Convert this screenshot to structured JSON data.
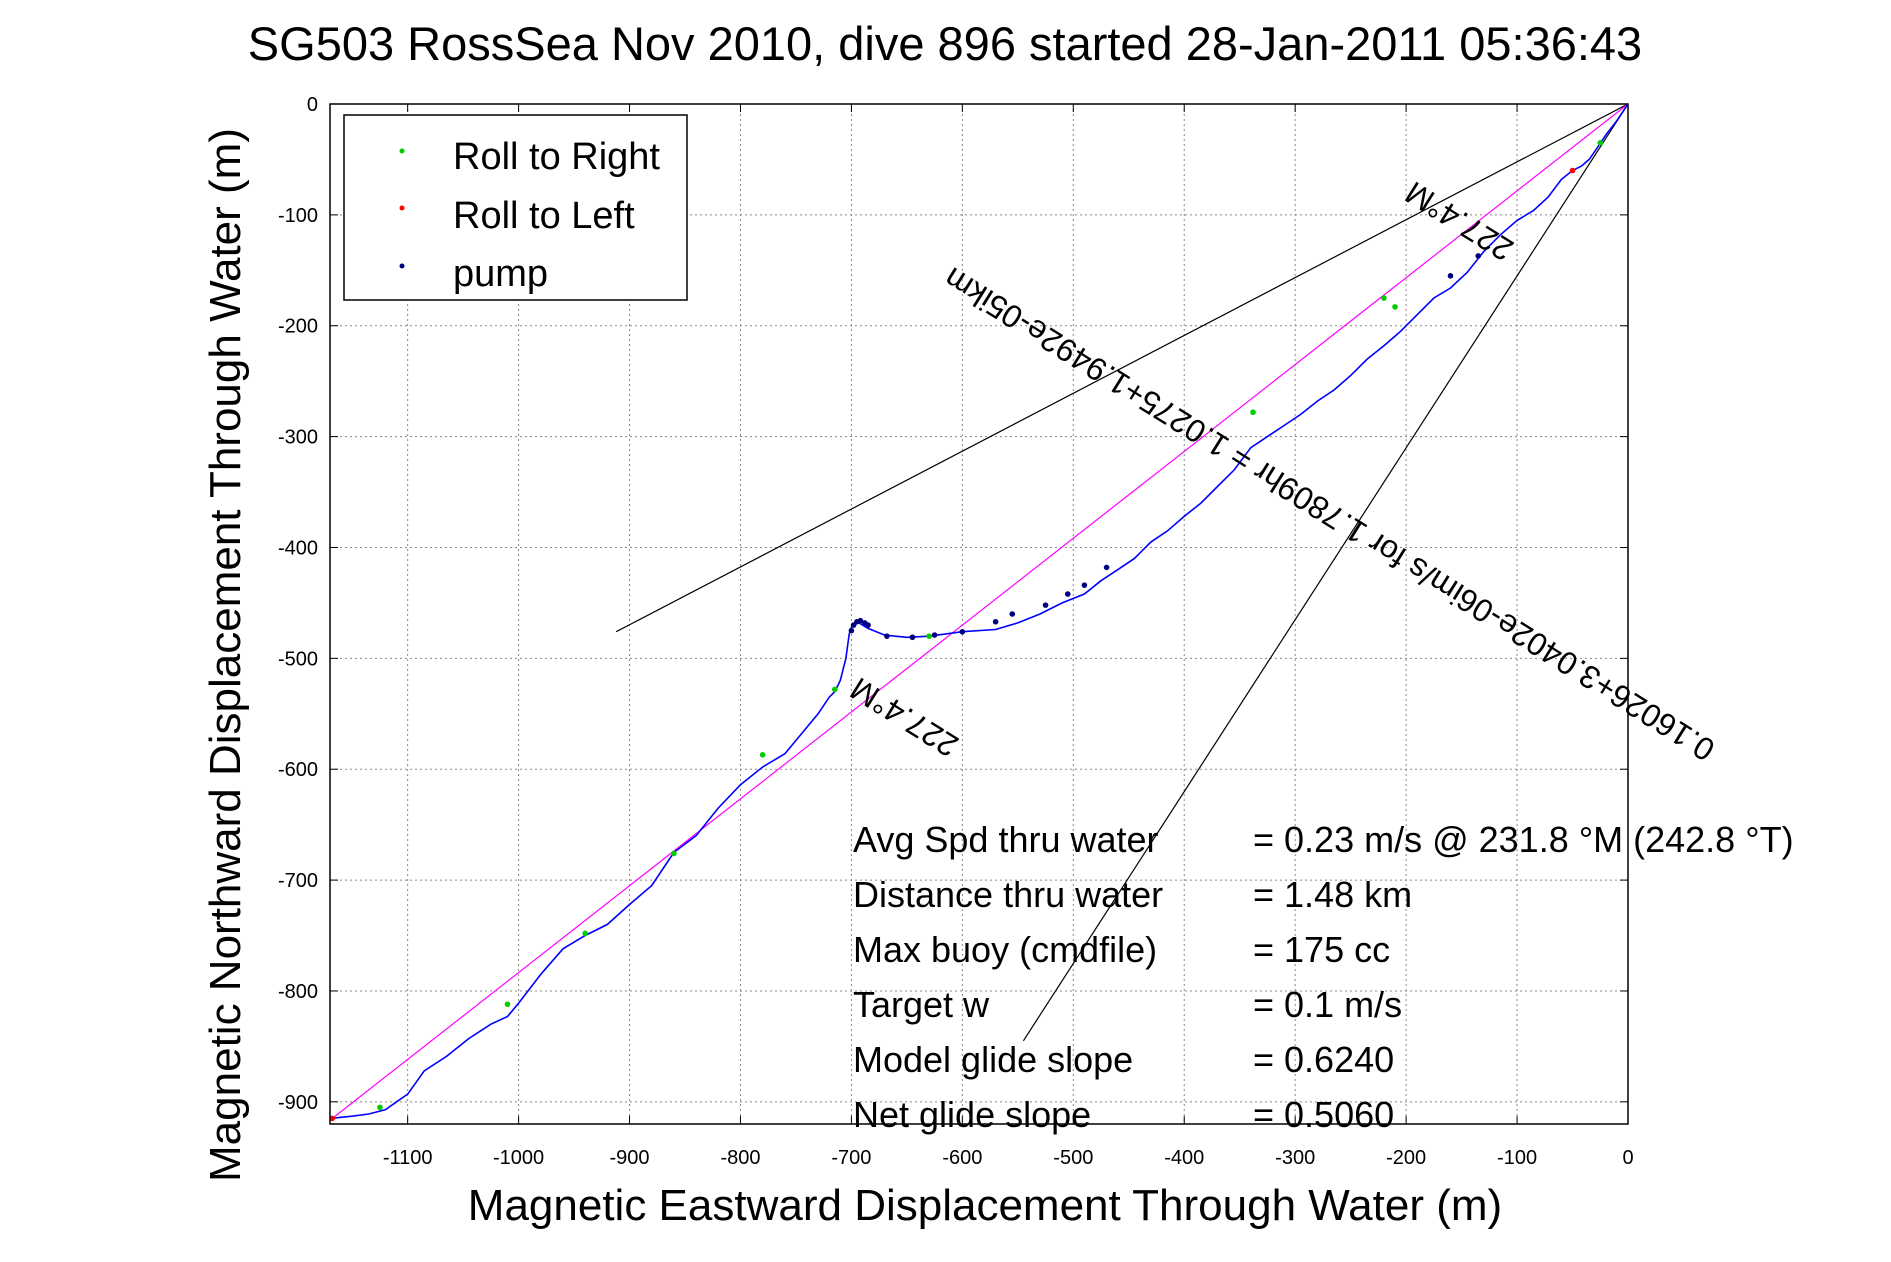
{
  "chart_data": {
    "type": "line",
    "title": "SG503 RossSea Nov 2010, dive 896 started 28-Jan-2011 05:36:43",
    "xlabel": "Magnetic Eastward Displacement Through Water (m)",
    "ylabel": "Magnetic Northward Displacement Through Water (m)",
    "xlim": [
      -1170,
      0
    ],
    "ylim": [
      -920,
      0
    ],
    "xticks": [
      -1100,
      -1000,
      -900,
      -800,
      -700,
      -600,
      -500,
      -400,
      -300,
      -200,
      -100,
      0
    ],
    "yticks": [
      0,
      -100,
      -200,
      -300,
      -400,
      -500,
      -600,
      -700,
      -800,
      -900
    ],
    "grid": true,
    "legend_position": "top-left",
    "colors": {
      "track": "#0000ff",
      "roll_right": "#00cc00",
      "roll_left": "#ff0000",
      "pump": "#000080",
      "reference": "#000000",
      "direct": "#ff00ff"
    },
    "legend": [
      {
        "key": "roll_right",
        "label": "Roll to Right"
      },
      {
        "key": "roll_left",
        "label": "Roll to Left"
      },
      {
        "key": "pump",
        "label": "pump"
      }
    ],
    "series": [
      {
        "name": "track",
        "x": [
          0,
          -10,
          -20,
          -28,
          -35,
          -42,
          -50,
          -60,
          -72,
          -85,
          -100,
          -115,
          -130,
          -145,
          -160,
          -175,
          -190,
          -205,
          -220,
          -235,
          -250,
          -265,
          -280,
          -295,
          -310,
          -325,
          -340,
          -355,
          -370,
          -385,
          -400,
          -415,
          -430,
          -445,
          -460,
          -475,
          -490,
          -510,
          -530,
          -550,
          -570,
          -600,
          -630,
          -650,
          -670,
          -685,
          -690,
          -693,
          -695,
          -697,
          -700,
          -702,
          -705,
          -710,
          -715,
          -720,
          -730,
          -745,
          -760,
          -780,
          -800,
          -820,
          -840,
          -860,
          -870,
          -880,
          -900,
          -920,
          -940,
          -960,
          -980,
          -1000,
          -1010,
          -1025,
          -1045,
          -1065,
          -1085,
          -1100,
          -1110,
          -1120,
          -1135,
          -1150,
          -1160,
          -1170
        ],
        "y": [
          0,
          -15,
          -28,
          -40,
          -50,
          -56,
          -60,
          -68,
          -84,
          -96,
          -105,
          -118,
          -133,
          -152,
          -166,
          -175,
          -190,
          -205,
          -218,
          -230,
          -245,
          -258,
          -268,
          -280,
          -290,
          -300,
          -310,
          -330,
          -345,
          -360,
          -372,
          -385,
          -395,
          -410,
          -420,
          -430,
          -442,
          -450,
          -460,
          -468,
          -474,
          -476,
          -480,
          -481,
          -479,
          -473,
          -470,
          -468,
          -467,
          -468,
          -472,
          -478,
          -500,
          -520,
          -530,
          -535,
          -550,
          -568,
          -586,
          -598,
          -614,
          -635,
          -660,
          -675,
          -690,
          -705,
          -722,
          -740,
          -750,
          -762,
          -785,
          -811,
          -823,
          -830,
          -843,
          -859,
          -872,
          -893,
          -900,
          -907,
          -911,
          -913,
          -914,
          -915
        ]
      },
      {
        "name": "roll_right",
        "x": [
          -25,
          -210,
          -220,
          -338,
          -630,
          -645,
          -715,
          -780,
          -860,
          -940,
          -1010,
          -1125
        ],
        "y": [
          -35,
          -183,
          -175,
          -278,
          -480,
          -481,
          -528,
          -587,
          -676,
          -748,
          -812,
          -905
        ]
      },
      {
        "name": "roll_left",
        "x": [
          -50,
          -1168
        ],
        "y": [
          -60,
          -915
        ]
      },
      {
        "name": "pump",
        "x": [
          -135,
          -160,
          -470,
          -490,
          -505,
          -525,
          -555,
          -570,
          -600,
          -625,
          -645,
          -668,
          -685,
          -688,
          -692,
          -695,
          -698,
          -700
        ],
        "y": [
          -137,
          -155,
          -418,
          -434,
          -442,
          -452,
          -460,
          -467,
          -476,
          -479,
          -481,
          -480,
          -470,
          -468,
          -466,
          -467,
          -470,
          -475
        ]
      },
      {
        "name": "direct",
        "x": [
          0,
          -1168
        ],
        "y": [
          0,
          -915
        ]
      },
      {
        "name": "reference_upper",
        "x": [
          0,
          -912
        ],
        "y": [
          0,
          -476
        ]
      },
      {
        "name": "reference_lower",
        "x": [
          0,
          -545
        ],
        "y": [
          0,
          -845
        ]
      }
    ],
    "annotations": {
      "track_label": "0.16026+3.0402e-06im/s for 1.7809hr = 1.0275+1.9492e-05ikm",
      "heading_upper": "227.4°M",
      "heading_lower": "227.4°M"
    },
    "stats": [
      {
        "label": "Avg Spd thru water",
        "value": "=  0.23 m/s @ 231.8 °M (242.8 °T)"
      },
      {
        "label": "Distance thru water",
        "value": "=  1.48 km"
      },
      {
        "label": "Max buoy (cmdfile)",
        "value": "= 175 cc"
      },
      {
        "label": "Target w",
        "value": "= 0.1 m/s"
      },
      {
        "label": "Model glide slope",
        "value": "= 0.6240"
      },
      {
        "label": "Net glide slope",
        "value": "= 0.5060"
      }
    ]
  }
}
